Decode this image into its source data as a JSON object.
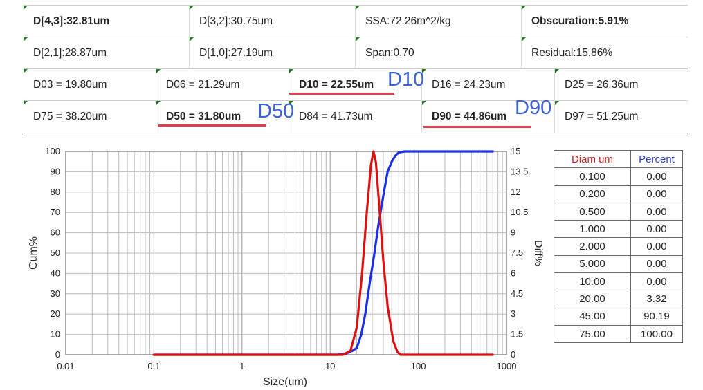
{
  "summary": {
    "row1": [
      {
        "text": "D[4,3]:32.81um",
        "bold": true
      },
      {
        "text": "D[3,2]:30.75um",
        "bold": false
      },
      {
        "text": "SSA:72.26m^2/kg",
        "bold": false
      },
      {
        "text": "Obscuration:5.91%",
        "bold": true
      }
    ],
    "row2": [
      {
        "text": "D[2,1]:28.87um",
        "bold": false
      },
      {
        "text": "D[1,0]:27.19um",
        "bold": false
      },
      {
        "text": "Span:0.70",
        "bold": false
      },
      {
        "text": "Residual:15.86%",
        "bold": false
      }
    ],
    "row3": [
      {
        "text": "D03 = 19.80um",
        "bold": false
      },
      {
        "text": "D06 = 21.29um",
        "bold": false
      },
      {
        "text": "D10 = 22.55um",
        "bold": true
      },
      {
        "text": "D16 = 24.23um",
        "bold": false
      },
      {
        "text": "D25 = 26.36um",
        "bold": false
      }
    ],
    "row4": [
      {
        "text": "D75 = 38.20um",
        "bold": false
      },
      {
        "text": "D50 = 31.80um",
        "bold": true
      },
      {
        "text": "D84 = 41.73um",
        "bold": false
      },
      {
        "text": "D90 = 44.86um",
        "bold": true
      },
      {
        "text": "D97 = 51.25um",
        "bold": false
      }
    ]
  },
  "annotations": {
    "d10": "D10",
    "d50": "D50",
    "d90": "D90",
    "color": "#3a63d8",
    "underline_color": "#e0404a"
  },
  "chart_data": {
    "type": "line",
    "xlabel": "Size(um)",
    "ylabel": "Cum%",
    "y2label": "Diff%",
    "x_scale": "log",
    "xlim": [
      0.01,
      1000
    ],
    "x_ticks": [
      "0.01",
      "0.1",
      "1",
      "10",
      "100",
      "1000"
    ],
    "ylim": [
      0,
      100
    ],
    "y_ticks": [
      "0",
      "10",
      "20",
      "30",
      "40",
      "50",
      "60",
      "70",
      "80",
      "90",
      "100"
    ],
    "y2lim": [
      0,
      15
    ],
    "y2_ticks": [
      "0",
      "1.5",
      "3",
      "4.5",
      "6",
      "7.5",
      "9",
      "10.5",
      "12",
      "13.5",
      "15"
    ],
    "grid": true,
    "series": [
      {
        "axis": "left",
        "color": "#1a2ee6",
        "x": [
          0.1,
          12,
          15,
          18,
          20,
          22.55,
          25,
          28,
          31.8,
          35,
          40,
          44.86,
          50,
          55,
          60,
          70,
          100,
          700
        ],
        "y": [
          0,
          0,
          0.5,
          2,
          3.32,
          10,
          20,
          35,
          50,
          63,
          78,
          90,
          95,
          98,
          99.5,
          100,
          100,
          100
        ]
      },
      {
        "axis": "right",
        "color": "#dd1111",
        "x": [
          0.1,
          14,
          17,
          20,
          23,
          26,
          29,
          31,
          33,
          36,
          40,
          45,
          52,
          58,
          63,
          700
        ],
        "y": [
          0,
          0,
          0.3,
          2,
          6,
          10.5,
          14,
          15,
          14.2,
          11,
          7,
          3.5,
          1,
          0.2,
          0,
          0
        ]
      }
    ]
  },
  "table": {
    "headers": [
      "Diam um",
      "Percent"
    ],
    "rows": [
      [
        "0.100",
        "0.00"
      ],
      [
        "0.200",
        "0.00"
      ],
      [
        "0.500",
        "0.00"
      ],
      [
        "1.000",
        "0.00"
      ],
      [
        "2.000",
        "0.00"
      ],
      [
        "5.000",
        "0.00"
      ],
      [
        "10.00",
        "0.00"
      ],
      [
        "20.00",
        "3.32"
      ],
      [
        "45.00",
        "90.19"
      ],
      [
        "75.00",
        "100.00"
      ]
    ]
  }
}
